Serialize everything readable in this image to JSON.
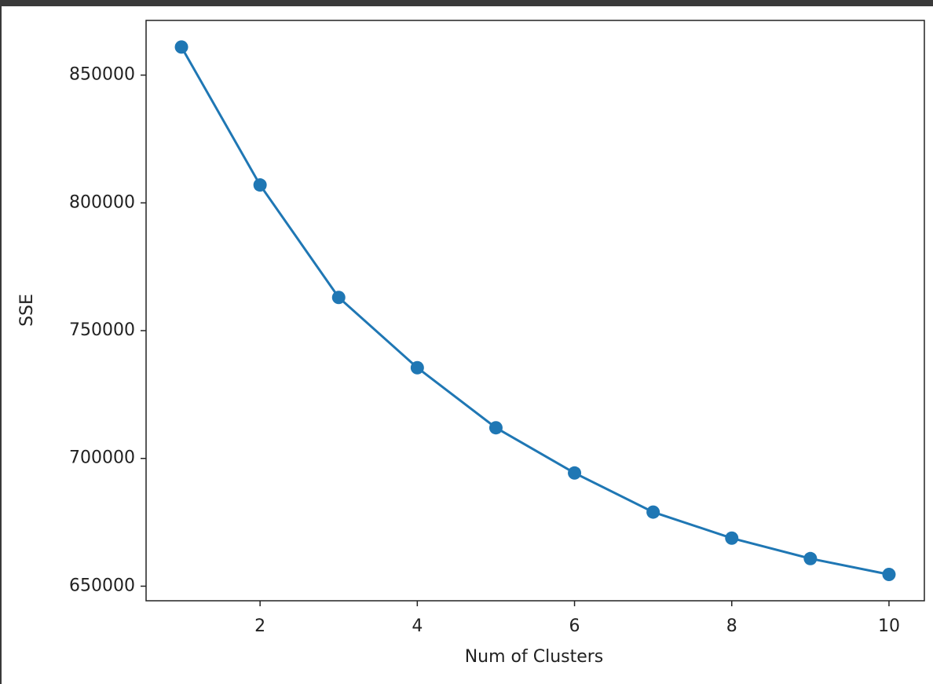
{
  "chart_data": {
    "type": "line",
    "x_label": "Num of Clusters",
    "y_label": "SSE",
    "x": [
      1,
      2,
      3,
      4,
      5,
      6,
      7,
      8,
      9,
      10
    ],
    "y": [
      861000,
      807000,
      763000,
      735500,
      712000,
      694300,
      679000,
      668800,
      660800,
      654600
    ],
    "color": "#1f77b4",
    "markers": true,
    "grid": false,
    "xlim": [
      0.55,
      10.45
    ],
    "ylim": [
      644300,
      871400
    ],
    "xticks": [
      2,
      4,
      6,
      8,
      10
    ],
    "yticks": [
      650000,
      700000,
      750000,
      800000,
      850000
    ]
  }
}
